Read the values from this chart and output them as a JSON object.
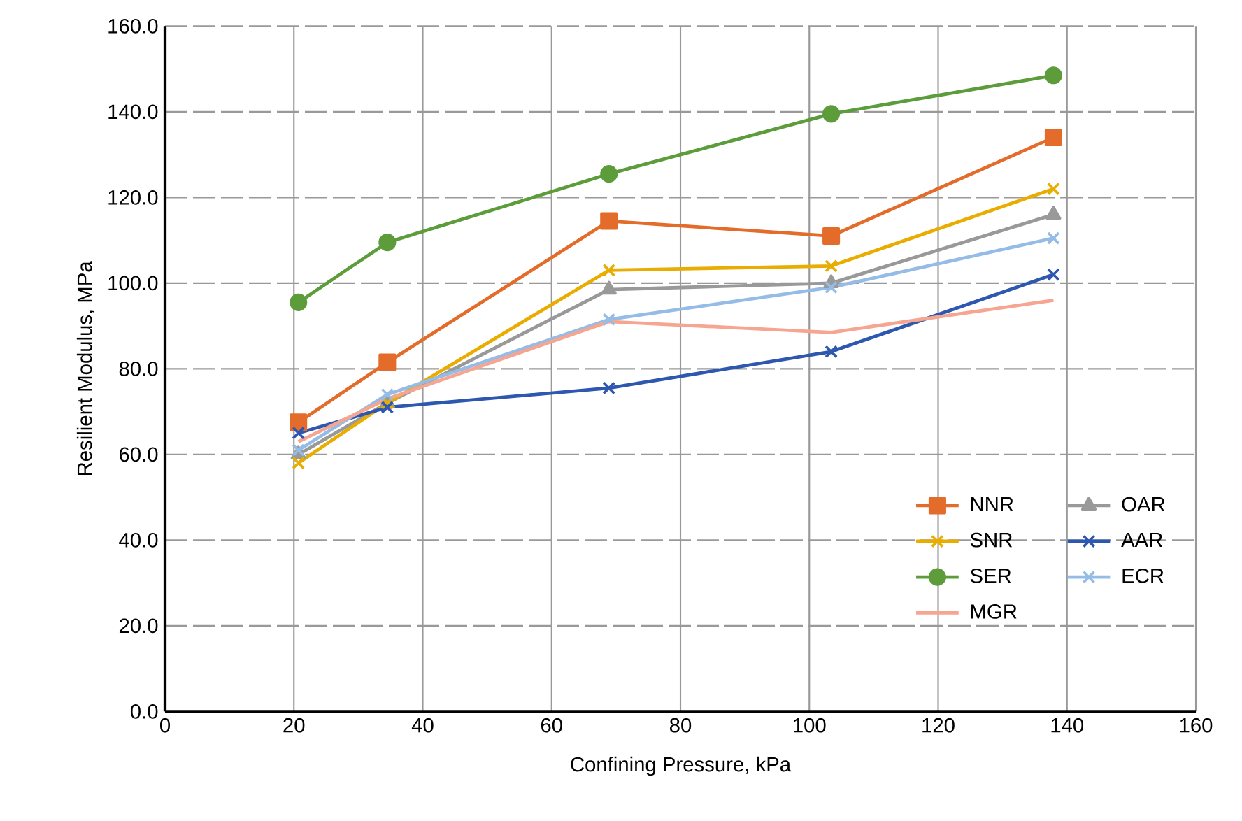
{
  "chart_data": {
    "type": "line",
    "xlabel": "Confining Pressure, kPa",
    "ylabel": "Resilient Modulus, MPa",
    "xlim": [
      0,
      160
    ],
    "xticks": [
      0,
      20,
      40,
      60,
      80,
      100,
      120,
      140,
      160
    ],
    "ylim": [
      0,
      160
    ],
    "yticks": [
      {
        "value": 0,
        "label": "0.0"
      },
      {
        "value": 20,
        "label": "20.0"
      },
      {
        "value": 40,
        "label": "40.0"
      },
      {
        "value": 60,
        "label": "60.0"
      },
      {
        "value": 80,
        "label": "80.0"
      },
      {
        "value": 100,
        "label": "100.0"
      },
      {
        "value": 120,
        "label": "120.0"
      },
      {
        "value": 140,
        "label": "140.0"
      },
      {
        "value": 160,
        "label": "160.0"
      }
    ],
    "x": [
      20.7,
      34.5,
      68.9,
      103.4,
      137.9
    ],
    "grid": true,
    "legend": "bottom right",
    "series": [
      {
        "name": "NNR",
        "color": "#e46c2a",
        "marker": "square",
        "values": [
          67.5,
          81.5,
          114.5,
          111,
          134
        ]
      },
      {
        "name": "OAR",
        "color": "#999999",
        "marker": "triangle",
        "values": [
          60,
          72,
          98.5,
          100,
          116
        ]
      },
      {
        "name": "SNR",
        "color": "#e8ad00",
        "marker": "cross",
        "values": [
          58,
          72,
          103,
          104,
          122
        ]
      },
      {
        "name": "AAR",
        "color": "#2e57b0",
        "marker": "cross",
        "values": [
          65,
          71,
          75.5,
          84,
          102
        ]
      },
      {
        "name": "SER",
        "color": "#5c9c3a",
        "marker": "circle",
        "values": [
          95.5,
          109.5,
          125.5,
          139.5,
          148.5
        ]
      },
      {
        "name": "ECR",
        "color": "#95bce6",
        "marker": "cross",
        "values": [
          61,
          74,
          91.5,
          99,
          110.5
        ]
      },
      {
        "name": "MGR",
        "color": "#f6a690",
        "marker": "none",
        "values": [
          63,
          73,
          91,
          88.5,
          96
        ]
      }
    ]
  }
}
